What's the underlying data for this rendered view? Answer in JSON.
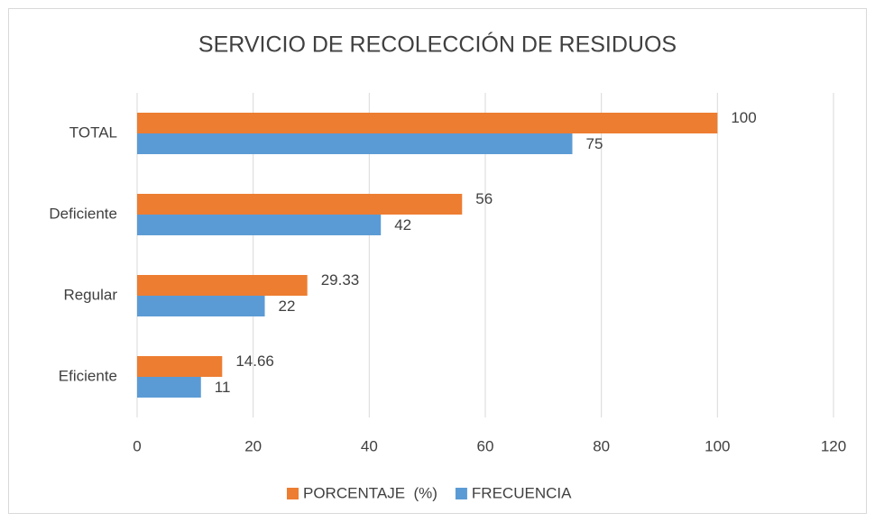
{
  "chart_data": {
    "type": "barh",
    "title": "SERVICIO DE RECOLECCIÓN DE RESIDUOS",
    "categories": [
      "TOTAL",
      "Deficiente",
      "Regular",
      "Eficiente"
    ],
    "series": [
      {
        "name": "PORCENTAJE  (%)",
        "color": "#ed7d31",
        "values": [
          100,
          56,
          29.33,
          14.66
        ]
      },
      {
        "name": "FRECUENCIA",
        "color": "#5b9bd5",
        "values": [
          75,
          42,
          22,
          11
        ]
      }
    ],
    "xlim": [
      0,
      120
    ],
    "xticks": [
      0,
      20,
      40,
      60,
      80,
      100,
      120
    ],
    "grid": true,
    "legend": "bottom"
  }
}
